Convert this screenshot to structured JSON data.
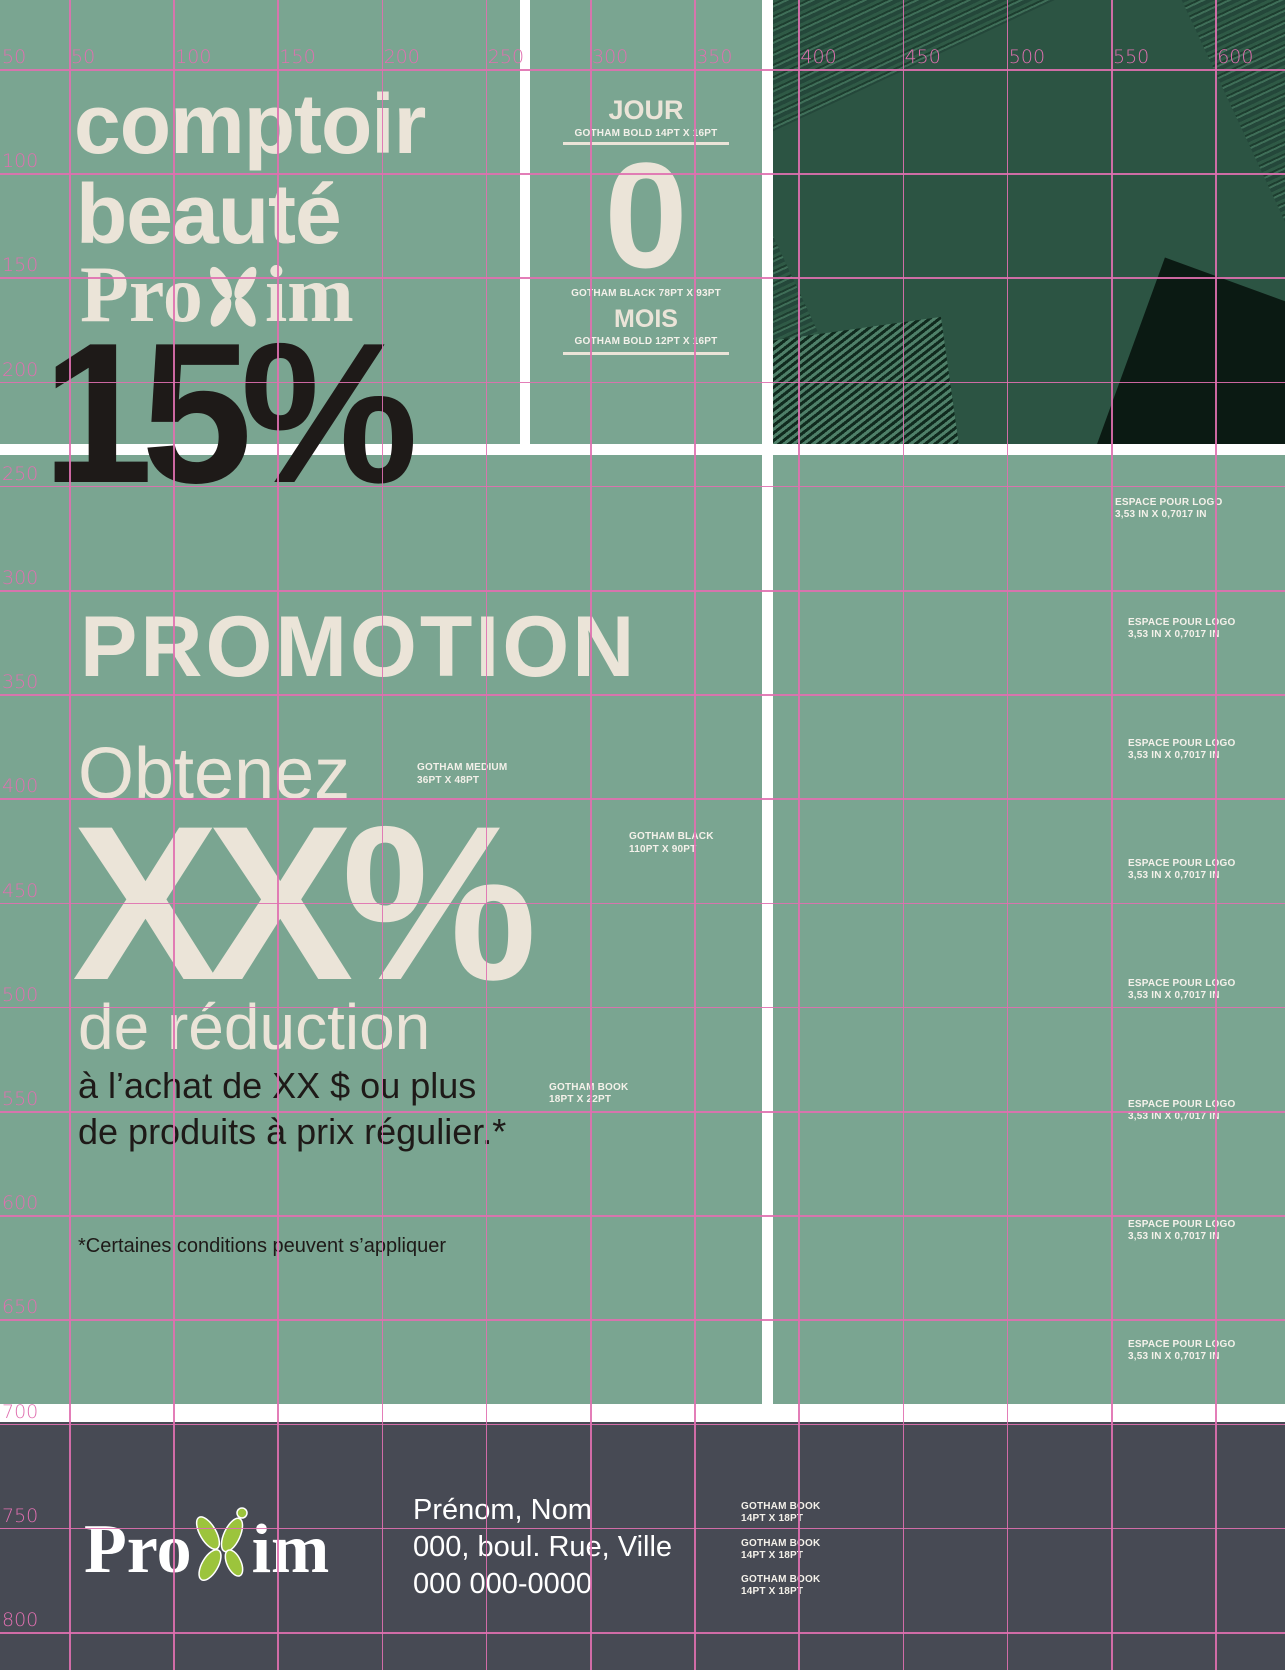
{
  "colors": {
    "panel": "#7aa591",
    "beige": "#ebe4d8",
    "text_dark": "#1e1a18",
    "footer": "#474a54",
    "grid": "#e070b0",
    "logo_leaf": "#9cc43c"
  },
  "header": {
    "title_line1": "comptoir",
    "title_line2": "beauté",
    "logo": "Proxim",
    "discount": "15%"
  },
  "date_box": {
    "day_label": "JOUR",
    "day_spec": "GOTHAM BOLD 14PT X 16PT",
    "day_value": "0",
    "value_spec": "GOTHAM BLACK 78PT X 93PT",
    "month_label": "MOIS",
    "month_spec": "GOTHAM BOLD 12PT X 16PT"
  },
  "promo": {
    "title": "PROMOTION",
    "obtain": "Obtenez",
    "obtain_spec_1": "GOTHAM MEDIUM",
    "obtain_spec_2": "36PT X 48PT",
    "amount": "XX%",
    "amount_spec_1": "GOTHAM BLACK",
    "amount_spec_2": "110PT X 90PT",
    "reduction": "de réduction",
    "condition_line1": "à l’achat de XX $ ou plus",
    "condition_line2": "de produits à prix régulier.*",
    "condition_spec_1": "GOTHAM BOOK",
    "condition_spec_2": "18PT X 22PT",
    "disclaimer": "*Certaines conditions peuvent s’appliquer"
  },
  "logo_spaces": [
    {
      "line1": "ESPACE POUR LOGO",
      "line2": "3,53 IN X 0,7017 IN"
    },
    {
      "line1": "ESPACE POUR LOGO",
      "line2": "3,53 IN X 0,7017 IN"
    },
    {
      "line1": "ESPACE POUR LOGO",
      "line2": "3,53 IN X 0,7017 IN"
    },
    {
      "line1": "ESPACE POUR LOGO",
      "line2": "3,53 IN X 0,7017 IN"
    },
    {
      "line1": "ESPACE POUR LOGO",
      "line2": "3,53 IN X 0,7017 IN"
    },
    {
      "line1": "ESPACE POUR LOGO",
      "line2": "3,53 IN X 0,7017 IN"
    },
    {
      "line1": "ESPACE POUR LOGO",
      "line2": "3,53 IN X 0,7017 IN"
    },
    {
      "line1": "ESPACE POUR LOGO",
      "line2": "3,53 IN X 0,7017 IN"
    }
  ],
  "footer": {
    "logo": "Proxim",
    "name": "Prénom, Nom",
    "address": "000, boul. Rue, Ville",
    "phone": "000 000-0000",
    "spec_1": "GOTHAM BOOK",
    "spec_2": "14PT X 18PT"
  },
  "grid": {
    "top_labels": [
      "50",
      "100",
      "150",
      "200",
      "250",
      "300",
      "350",
      "400",
      "450",
      "500",
      "550",
      "600"
    ],
    "left_labels": [
      "50",
      "100",
      "150",
      "200",
      "250",
      "300",
      "350",
      "400",
      "450",
      "500",
      "550",
      "600",
      "650",
      "700",
      "750",
      "800"
    ]
  }
}
